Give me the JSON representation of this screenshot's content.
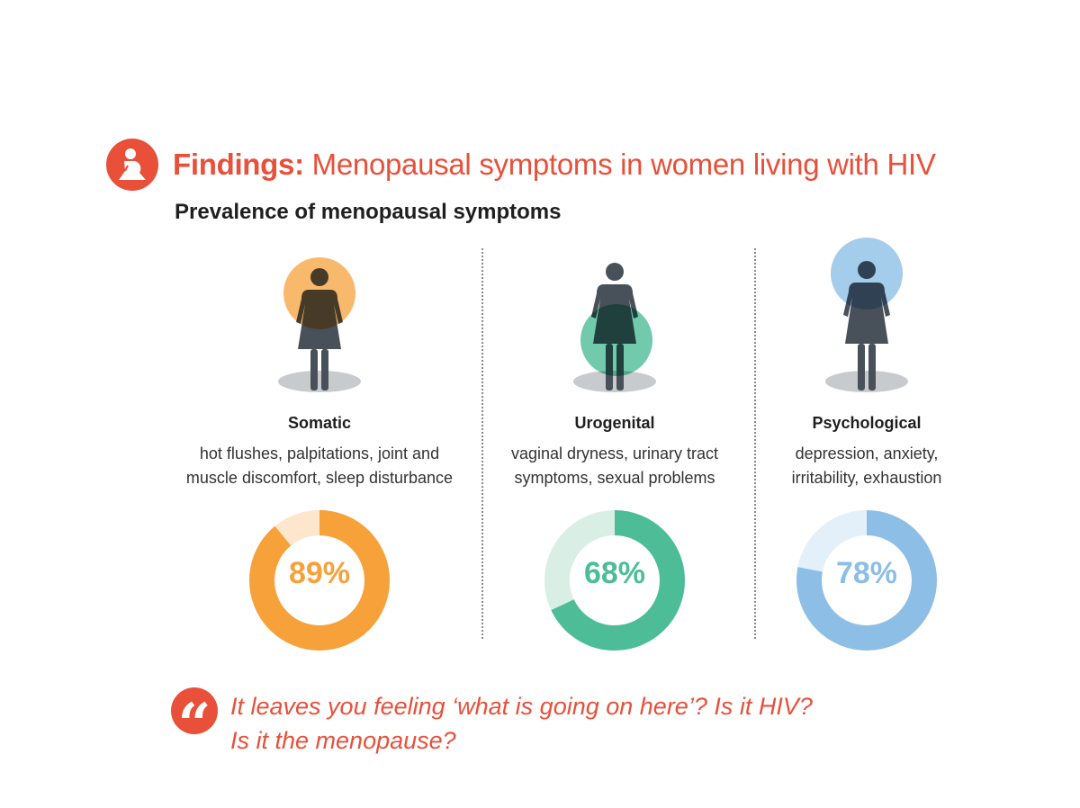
{
  "header": {
    "logo_icon": "pregnant-woman-logo-icon",
    "title_bold": "Findings:",
    "title_rest": "Menopausal symptoms in women living with HIV"
  },
  "subtitle": "Prevalence of menopausal symptoms",
  "categories": [
    {
      "name": "Somatic",
      "description": "hot flushes, palpitations, joint and\nmuscle discomfort, sleep disturbance",
      "percent_label": "89%",
      "highlight_region": "head and torso",
      "color": "#f7a13b",
      "track_color": "#fde6cb"
    },
    {
      "name": "Urogenital",
      "description": "vaginal dryness, urinary tract\nsymptoms, sexual problems",
      "percent_label": "68%",
      "highlight_region": "pelvis",
      "color": "#4dbd97",
      "track_color": "#d9efe6"
    },
    {
      "name": "Psychological",
      "description": "depression, anxiety,\nirritability, exhaustion",
      "percent_label": "78%",
      "highlight_region": "head",
      "color": "#8dbfe6",
      "track_color": "#e3eff9"
    }
  ],
  "figure_color": "#48515a",
  "quote": {
    "icon": "quote-mark-icon",
    "text": "It leaves you feeling ‘what is going on here’? Is it HIV?\nIs it the menopause?"
  },
  "chart_data": {
    "type": "pie",
    "title": "Prevalence of menopausal symptoms",
    "categories": [
      "Somatic",
      "Urogenital",
      "Psychological"
    ],
    "values": [
      89,
      68,
      78
    ],
    "unit": "%"
  }
}
